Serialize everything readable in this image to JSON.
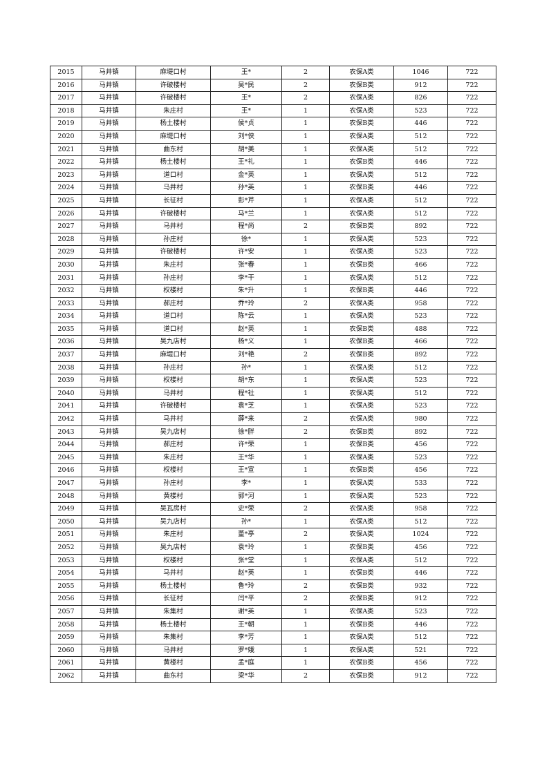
{
  "table": {
    "rows": [
      [
        "2015",
        "马井镇",
        "麻堤口村",
        "王*",
        "2",
        "农保A类",
        "1046",
        "722"
      ],
      [
        "2016",
        "马井镇",
        "许破楼村",
        "吴*民",
        "2",
        "农保B类",
        "912",
        "722"
      ],
      [
        "2017",
        "马井镇",
        "许破楼村",
        "王*",
        "2",
        "农保A类",
        "826",
        "722"
      ],
      [
        "2018",
        "马井镇",
        "朱庄村",
        "王*",
        "1",
        "农保A类",
        "523",
        "722"
      ],
      [
        "2019",
        "马井镇",
        "杨土楼村",
        "侯*贞",
        "1",
        "农保B类",
        "446",
        "722"
      ],
      [
        "2020",
        "马井镇",
        "麻堤口村",
        "刘*侠",
        "1",
        "农保A类",
        "512",
        "722"
      ],
      [
        "2021",
        "马井镇",
        "曲东村",
        "胡*美",
        "1",
        "农保A类",
        "512",
        "722"
      ],
      [
        "2022",
        "马井镇",
        "杨土楼村",
        "王*礼",
        "1",
        "农保B类",
        "446",
        "722"
      ],
      [
        "2023",
        "马井镇",
        "道口村",
        "金*英",
        "1",
        "农保A类",
        "512",
        "722"
      ],
      [
        "2024",
        "马井镇",
        "马井村",
        "孙*英",
        "1",
        "农保B类",
        "446",
        "722"
      ],
      [
        "2025",
        "马井镇",
        "长征村",
        "彭*芹",
        "1",
        "农保A类",
        "512",
        "722"
      ],
      [
        "2026",
        "马井镇",
        "许破楼村",
        "马*兰",
        "1",
        "农保A类",
        "512",
        "722"
      ],
      [
        "2027",
        "马井镇",
        "马井村",
        "程*尚",
        "2",
        "农保B类",
        "892",
        "722"
      ],
      [
        "2028",
        "马井镇",
        "孙庄村",
        "徐*",
        "1",
        "农保A类",
        "523",
        "722"
      ],
      [
        "2029",
        "马井镇",
        "许破楼村",
        "许*安",
        "1",
        "农保A类",
        "523",
        "722"
      ],
      [
        "2030",
        "马井镇",
        "朱庄村",
        "张*春",
        "1",
        "农保B类",
        "466",
        "722"
      ],
      [
        "2031",
        "马井镇",
        "孙庄村",
        "李*干",
        "1",
        "农保A类",
        "512",
        "722"
      ],
      [
        "2032",
        "马井镇",
        "权楼村",
        "朱*升",
        "1",
        "农保B类",
        "446",
        "722"
      ],
      [
        "2033",
        "马井镇",
        "郝庄村",
        "乔*玲",
        "2",
        "农保A类",
        "958",
        "722"
      ],
      [
        "2034",
        "马井镇",
        "道口村",
        "陈*云",
        "1",
        "农保A类",
        "523",
        "722"
      ],
      [
        "2035",
        "马井镇",
        "道口村",
        "赵*英",
        "1",
        "农保B类",
        "488",
        "722"
      ],
      [
        "2036",
        "马井镇",
        "吴九店村",
        "杨*义",
        "1",
        "农保B类",
        "466",
        "722"
      ],
      [
        "2037",
        "马井镇",
        "麻堤口村",
        "刘*艳",
        "2",
        "农保B类",
        "892",
        "722"
      ],
      [
        "2038",
        "马井镇",
        "孙庄村",
        "孙*",
        "1",
        "农保A类",
        "512",
        "722"
      ],
      [
        "2039",
        "马井镇",
        "权楼村",
        "胡*东",
        "1",
        "农保A类",
        "523",
        "722"
      ],
      [
        "2040",
        "马井镇",
        "马井村",
        "程*社",
        "1",
        "农保A类",
        "512",
        "722"
      ],
      [
        "2041",
        "马井镇",
        "许破楼村",
        "袁*芝",
        "1",
        "农保A类",
        "523",
        "722"
      ],
      [
        "2042",
        "马井镇",
        "马井村",
        "薛*来",
        "2",
        "农保A类",
        "980",
        "722"
      ],
      [
        "2043",
        "马井镇",
        "吴九店村",
        "徐*胖",
        "2",
        "农保B类",
        "892",
        "722"
      ],
      [
        "2044",
        "马井镇",
        "郝庄村",
        "许*荣",
        "1",
        "农保B类",
        "456",
        "722"
      ],
      [
        "2045",
        "马井镇",
        "朱庄村",
        "王*华",
        "1",
        "农保A类",
        "523",
        "722"
      ],
      [
        "2046",
        "马井镇",
        "权楼村",
        "王*宣",
        "1",
        "农保B类",
        "456",
        "722"
      ],
      [
        "2047",
        "马井镇",
        "孙庄村",
        "李*",
        "1",
        "农保A类",
        "533",
        "722"
      ],
      [
        "2048",
        "马井镇",
        "黄楼村",
        "郭*河",
        "1",
        "农保A类",
        "523",
        "722"
      ],
      [
        "2049",
        "马井镇",
        "吴瓦房村",
        "史*荣",
        "2",
        "农保A类",
        "958",
        "722"
      ],
      [
        "2050",
        "马井镇",
        "吴九店村",
        "孙*",
        "1",
        "农保A类",
        "512",
        "722"
      ],
      [
        "2051",
        "马井镇",
        "朱庄村",
        "董*亭",
        "2",
        "农保A类",
        "1024",
        "722"
      ],
      [
        "2052",
        "马井镇",
        "吴九店村",
        "袁*玲",
        "1",
        "农保B类",
        "456",
        "722"
      ],
      [
        "2053",
        "马井镇",
        "权楼村",
        "张*堂",
        "1",
        "农保A类",
        "512",
        "722"
      ],
      [
        "2054",
        "马井镇",
        "马井村",
        "赵*英",
        "1",
        "农保B类",
        "446",
        "722"
      ],
      [
        "2055",
        "马井镇",
        "杨土楼村",
        "鲁*玲",
        "2",
        "农保B类",
        "932",
        "722"
      ],
      [
        "2056",
        "马井镇",
        "长征村",
        "闫*平",
        "2",
        "农保B类",
        "912",
        "722"
      ],
      [
        "2057",
        "马井镇",
        "朱集村",
        "谢*英",
        "1",
        "农保A类",
        "523",
        "722"
      ],
      [
        "2058",
        "马井镇",
        "杨土楼村",
        "王*朝",
        "1",
        "农保B类",
        "446",
        "722"
      ],
      [
        "2059",
        "马井镇",
        "朱集村",
        "李*芳",
        "1",
        "农保A类",
        "512",
        "722"
      ],
      [
        "2060",
        "马井镇",
        "马井村",
        "罗*娥",
        "1",
        "农保A类",
        "521",
        "722"
      ],
      [
        "2061",
        "马井镇",
        "黄楼村",
        "孟*庭",
        "1",
        "农保B类",
        "456",
        "722"
      ],
      [
        "2062",
        "马井镇",
        "曲东村",
        "梁*华",
        "2",
        "农保B类",
        "912",
        "722"
      ]
    ]
  }
}
